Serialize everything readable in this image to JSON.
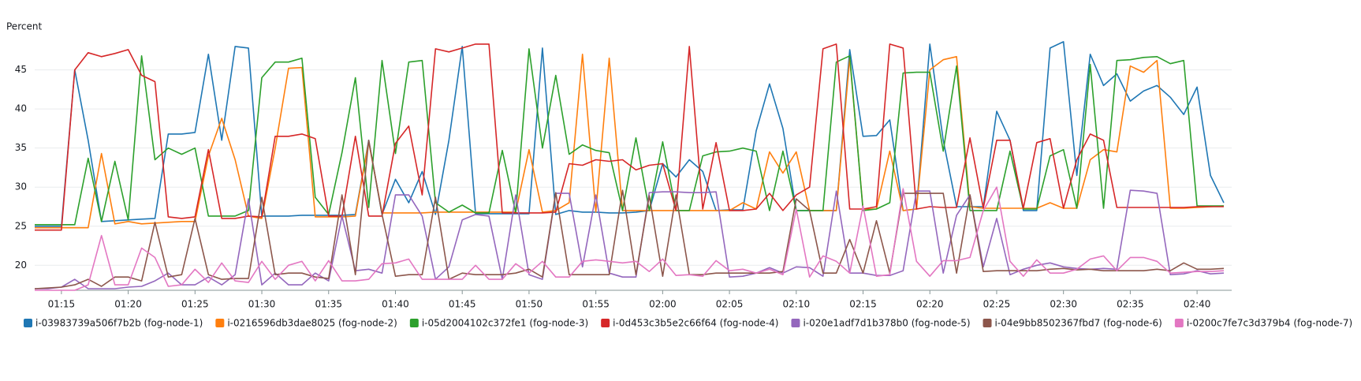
{
  "chart_data": {
    "type": "line",
    "ylabel": "Percent",
    "grid": true,
    "legend": "bottom",
    "x": [
      73,
      74,
      75,
      76,
      77,
      78,
      79,
      80,
      81,
      82,
      83,
      84,
      85,
      86,
      87,
      88,
      89,
      90,
      91,
      92,
      93,
      94,
      95,
      96,
      97,
      98,
      99,
      100,
      101,
      102,
      103,
      104,
      105,
      106,
      107,
      108,
      109,
      110,
      111,
      112,
      113,
      114,
      115,
      116,
      117,
      118,
      119,
      120,
      121,
      122,
      123,
      124,
      125,
      126,
      127,
      128,
      129,
      130,
      131,
      132,
      133,
      134,
      135,
      136,
      137,
      138,
      139,
      140,
      141,
      142,
      143,
      144,
      145,
      146,
      147,
      148,
      149,
      150,
      151,
      152,
      153,
      154,
      155,
      156,
      157,
      158,
      159,
      160,
      161,
      162
    ],
    "xlim": [
      73,
      162
    ],
    "xticks": [
      {
        "value": 75,
        "label": "01:15"
      },
      {
        "value": 80,
        "label": "01:20"
      },
      {
        "value": 85,
        "label": "01:25"
      },
      {
        "value": 90,
        "label": "01:30"
      },
      {
        "value": 95,
        "label": "01:35"
      },
      {
        "value": 100,
        "label": "01:40"
      },
      {
        "value": 105,
        "label": "01:45"
      },
      {
        "value": 110,
        "label": "01:50"
      },
      {
        "value": 115,
        "label": "01:55"
      },
      {
        "value": 120,
        "label": "02:00"
      },
      {
        "value": 125,
        "label": "02:05"
      },
      {
        "value": 130,
        "label": "02:10"
      },
      {
        "value": 135,
        "label": "02:15"
      },
      {
        "value": 140,
        "label": "02:20"
      },
      {
        "value": 145,
        "label": "02:25"
      },
      {
        "value": 150,
        "label": "02:30"
      },
      {
        "value": 155,
        "label": "02:35"
      },
      {
        "value": 160,
        "label": "02:40"
      }
    ],
    "ylim": [
      16.8,
      49.2
    ],
    "yticks": [
      20,
      25,
      30,
      35,
      40,
      45
    ],
    "series": [
      {
        "name": "i-03983739a506f7b2b (fog-node-1)",
        "color": "#1f77b4",
        "values": [
          25,
          25,
          25,
          45,
          36,
          25.6,
          25.7,
          25.8,
          25.9,
          26,
          36.8,
          36.8,
          37,
          47,
          36,
          48,
          47.8,
          26.3,
          26.3,
          26.3,
          26.4,
          26.4,
          26.4,
          26.4,
          26.5,
          36,
          26.5,
          31,
          28,
          32,
          26.5,
          36,
          48,
          26.6,
          26.6,
          26.6,
          26.6,
          26.6,
          47.8,
          26.5,
          27,
          26.8,
          26.8,
          26.7,
          26.7,
          26.8,
          27,
          33,
          31.3,
          33.5,
          32,
          27,
          27.1,
          27.1,
          37.2,
          43.2,
          37.5,
          27,
          27,
          27,
          27,
          47.6,
          36.5,
          36.6,
          38.6,
          27,
          27.2,
          48.3,
          36,
          27.5,
          27.5,
          27.5,
          39.7,
          36,
          27,
          27,
          47.8,
          48.6,
          31.5,
          47,
          43,
          44.5,
          41,
          42.3,
          43,
          41.5,
          39.3,
          42.8,
          31.5,
          28
        ]
      },
      {
        "name": "i-0216596db3dae8025 (fog-node-2)",
        "color": "#ff7f0e",
        "values": [
          24.8,
          24.8,
          24.8,
          24.8,
          24.8,
          34.3,
          25.3,
          25.6,
          25.3,
          25.4,
          25.5,
          25.6,
          25.6,
          34,
          38.8,
          33.5,
          26.3,
          26,
          35,
          45.2,
          45.3,
          26.2,
          26.2,
          26.2,
          26.3,
          35.8,
          26.7,
          26.7,
          26.7,
          26.7,
          26.8,
          26.8,
          26.8,
          26.8,
          26.8,
          26.8,
          26.8,
          34.8,
          26.8,
          27,
          28,
          47,
          26.8,
          46.5,
          27,
          27,
          27,
          27,
          27,
          27,
          27,
          27,
          27,
          28,
          27.2,
          34.5,
          31.8,
          34.5,
          27,
          27,
          27,
          46.5,
          27.2,
          27.2,
          34.6,
          27,
          27.2,
          45,
          46.3,
          46.7,
          27.5,
          27.3,
          27.3,
          27.3,
          27.3,
          27.3,
          28,
          27.3,
          27.3,
          33.5,
          34.8,
          34.5,
          45.5,
          44.7,
          46.2,
          27.3,
          27.3,
          27.4,
          27.5,
          27.6
        ]
      },
      {
        "name": "i-05d2004102c372fe1 (fog-node-3)",
        "color": "#2ca02c",
        "values": [
          25.2,
          25.2,
          25.2,
          25.2,
          33.7,
          25.6,
          33.3,
          25.8,
          46.8,
          33.5,
          35,
          34.2,
          35,
          26.3,
          26.3,
          26.3,
          27,
          44,
          46,
          46,
          46.5,
          28.7,
          26.5,
          34.4,
          44,
          27.4,
          46.2,
          34.3,
          46,
          46.2,
          28,
          26.8,
          27.7,
          26.7,
          26.7,
          34.7,
          26.7,
          47.7,
          35,
          44.3,
          34.2,
          35.4,
          34.7,
          34.4,
          27,
          36.3,
          27,
          35.8,
          27,
          27,
          34,
          34.5,
          34.6,
          35,
          34.6,
          27,
          34.6,
          27,
          27,
          27,
          46,
          46.8,
          27,
          27.2,
          28,
          44.6,
          44.7,
          44.7,
          34.6,
          45.5,
          27,
          27,
          27,
          34.6,
          27.2,
          27.2,
          34,
          34.8,
          27.3,
          45.7,
          27.3,
          46.2,
          46.3,
          46.6,
          46.7,
          45.8,
          46.2,
          27.6,
          27.6,
          27.6
        ]
      },
      {
        "name": "i-0d453c3b5e2c66f64 (fog-node-4)",
        "color": "#d62728",
        "values": [
          24.5,
          24.5,
          24.5,
          45,
          47.2,
          46.7,
          47.1,
          47.6,
          44.3,
          43.5,
          26.2,
          26,
          26.2,
          34.8,
          26,
          26,
          26.3,
          26.2,
          36.5,
          36.5,
          36.8,
          36.2,
          26.3,
          26.3,
          36.5,
          26.3,
          26.3,
          35.6,
          37.8,
          29,
          47.7,
          47.3,
          47.8,
          48.3,
          48.3,
          26.7,
          26.7,
          26.7,
          26.7,
          26.8,
          33,
          32.8,
          33.5,
          33.3,
          33.5,
          32.2,
          32.8,
          33,
          27,
          48,
          27.2,
          35.7,
          27,
          27,
          27.2,
          29.2,
          27,
          29,
          30,
          47.7,
          48.3,
          27.2,
          27.2,
          27.5,
          48.3,
          47.8,
          27.2,
          27.5,
          27.4,
          27.4,
          36.3,
          27.3,
          36,
          36,
          27.3,
          35.7,
          36.2,
          27.3,
          33.5,
          36.8,
          36,
          27.4,
          27.4,
          27.4,
          27.4,
          27.4,
          27.4,
          27.5,
          27.5,
          27.5
        ]
      },
      {
        "name": "i-020e1adf7d1b378b0 (fog-node-5)",
        "color": "#9467bd",
        "values": [
          17,
          17,
          17.2,
          18.2,
          17,
          17,
          17,
          17.2,
          17.3,
          18,
          19,
          17.5,
          17.5,
          18.5,
          17.5,
          18.8,
          28.5,
          17.5,
          19,
          17.5,
          17.5,
          19,
          18,
          26.3,
          19.3,
          19.5,
          19,
          29,
          29,
          26.3,
          18.2,
          19.8,
          25.8,
          26.5,
          26.3,
          18.2,
          29,
          18.8,
          18.2,
          29.2,
          29.2,
          19.8,
          29,
          19,
          18.5,
          18.5,
          29.3,
          29.4,
          29.4,
          29.3,
          29.3,
          29.4,
          18.5,
          18.6,
          19,
          19.7,
          19,
          19.8,
          19.7,
          18.6,
          29.5,
          19,
          19,
          18.7,
          18.7,
          19.3,
          29.5,
          29.5,
          19,
          26.4,
          29,
          19.8,
          26,
          18.8,
          19.5,
          20,
          20.3,
          19.8,
          19.6,
          19.5,
          19.6,
          19.5,
          29.6,
          29.5,
          29.2,
          18.8,
          18.9,
          19.3,
          18.9,
          19
        ]
      },
      {
        "name": "i-04e9bb8502367fbd7 (fog-node-6)",
        "color": "#8c564b",
        "values": [
          17,
          17.1,
          17.2,
          17.5,
          18.2,
          17.3,
          18.5,
          18.5,
          18,
          25.5,
          18.5,
          18.8,
          26,
          18.8,
          18.2,
          18.3,
          18.3,
          28.7,
          18.8,
          19,
          19,
          18.5,
          18.3,
          29,
          18.8,
          36,
          26.5,
          18.6,
          18.8,
          18.8,
          28.7,
          18.2,
          19,
          18.8,
          18.8,
          18.8,
          19,
          19.5,
          18.5,
          29.3,
          18.8,
          18.8,
          18.8,
          18.8,
          29.6,
          18.8,
          28.9,
          18.6,
          29,
          18.8,
          18.8,
          19,
          19,
          19,
          19,
          19,
          19.2,
          28.5,
          27,
          19,
          19,
          23.3,
          19,
          25.7,
          19,
          29.2,
          29.2,
          29.2,
          29.2,
          19,
          29,
          19.2,
          19.3,
          19.3,
          19.3,
          19.3,
          19.5,
          19.6,
          19.4,
          19.5,
          19.3,
          19.3,
          19.3,
          19.3,
          19.5,
          19.3,
          20.3,
          19.5,
          19.5,
          19.6
        ]
      },
      {
        "name": "i-0200c7fe7c3d379b4 (fog-node-7)",
        "color": "#e377c2",
        "values": [
          16.8,
          16.8,
          16.8,
          16.8,
          17.5,
          23.8,
          17.5,
          17.5,
          22.2,
          21,
          17.3,
          17.5,
          19.5,
          17.8,
          20.3,
          18,
          17.8,
          20.5,
          18.2,
          20,
          20.5,
          18,
          20.6,
          18,
          18,
          18.2,
          20.2,
          20.3,
          20.8,
          18.2,
          18.2,
          18.2,
          18.2,
          20,
          18.2,
          18.2,
          20.2,
          19,
          20.5,
          18.5,
          18.5,
          20.5,
          20.7,
          20.5,
          20.3,
          20.5,
          19.2,
          20.8,
          18.7,
          18.8,
          18.6,
          20.6,
          19.3,
          19.5,
          19,
          19.5,
          18.8,
          27.2,
          18.5,
          21.2,
          20.5,
          19,
          27.6,
          18.6,
          18.8,
          29.8,
          20.5,
          18.6,
          20.6,
          20.6,
          21,
          27,
          30,
          20.5,
          18.6,
          20.7,
          19,
          19,
          19.5,
          20.8,
          21.2,
          19.3,
          21,
          21,
          20.5,
          19,
          19.1,
          19.2,
          19.2,
          19.3
        ]
      }
    ]
  }
}
